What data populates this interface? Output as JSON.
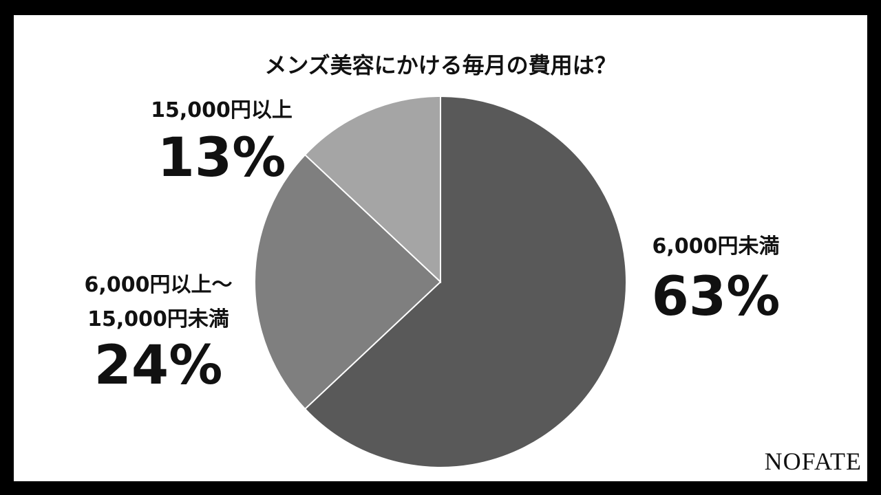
{
  "chart_data": {
    "type": "pie",
    "title": "メンズ美容にかける毎月の費用は？",
    "categories": [
      "6,000円未満",
      "6,000円以上～\n15,000円未満",
      "15,000円以上"
    ],
    "values": [
      63,
      24,
      13
    ],
    "value_labels": [
      "63%",
      "24%",
      "13%"
    ],
    "colors": [
      "#595959",
      "#7f7f7f",
      "#a5a5a5"
    ],
    "brand": "NOFATE"
  }
}
